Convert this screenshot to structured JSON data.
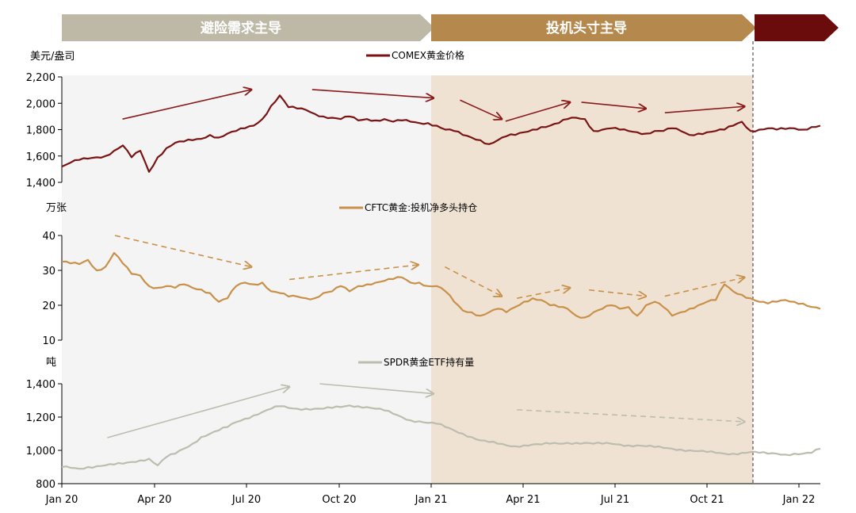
{
  "chart_data": {
    "type": "line",
    "phases": [
      {
        "label": "避险需求主导",
        "color": "#bdb9a6"
      },
      {
        "label": "投机头寸主导",
        "color": "#b5894e"
      },
      {
        "label": "",
        "color": "#6b0c0c"
      }
    ],
    "shading": [
      {
        "from": "Jan 20",
        "to": "Jan 21",
        "color": "#f4f4f4"
      },
      {
        "from": "Jan 21",
        "to": "Dec 21",
        "color": "#efe2d3"
      }
    ],
    "x_ticks": [
      "Jan 20",
      "Apr 20",
      "Jul 20",
      "Oct 20",
      "Jan 21",
      "Apr 21",
      "Jul 21",
      "Oct 21",
      "Jan 22"
    ],
    "panels": [
      {
        "name": "comex",
        "unit": "美元/盎司",
        "legend": "COMEX黄金价格",
        "color": "#7a1414",
        "ylim": [
          1400,
          2200
        ],
        "y_ticks": [
          "2,200",
          "2,000",
          "1,800",
          "1,600",
          "1,400"
        ],
        "tick_values": [
          2200,
          2000,
          1800,
          1600,
          1400
        ],
        "values": [
          1520,
          1550,
          1570,
          1580,
          1590,
          1600,
          1640,
          1680,
          1590,
          1640,
          1480,
          1590,
          1660,
          1700,
          1710,
          1720,
          1730,
          1760,
          1740,
          1770,
          1790,
          1810,
          1830,
          1880,
          1980,
          2060,
          1970,
          1960,
          1950,
          1920,
          1900,
          1890,
          1880,
          1900,
          1870,
          1880,
          1870,
          1880,
          1860,
          1870,
          1860,
          1850,
          1850,
          1830,
          1800,
          1790,
          1760,
          1740,
          1720,
          1690,
          1720,
          1750,
          1760,
          1780,
          1800,
          1820,
          1830,
          1850,
          1880,
          1890,
          1880,
          1790,
          1800,
          1810,
          1800,
          1790,
          1780,
          1770,
          1790,
          1790,
          1810,
          1790,
          1760,
          1770,
          1780,
          1790,
          1800,
          1830,
          1860,
          1790,
          1800,
          1810,
          1800,
          1805,
          1810,
          1800,
          1820,
          1830
        ],
        "arrows": [
          [
            0.08,
            0.4,
            0.25,
            0.12
          ],
          [
            0.33,
            0.12,
            0.49,
            0.2
          ],
          [
            0.525,
            0.22,
            0.58,
            0.4
          ],
          [
            0.585,
            0.42,
            0.67,
            0.24
          ],
          [
            0.685,
            0.24,
            0.77,
            0.3
          ],
          [
            0.795,
            0.34,
            0.9,
            0.28
          ]
        ],
        "arrow_dashed": false
      },
      {
        "name": "cftc",
        "unit": "万张",
        "legend": "CFTC黄金:投机净多头持仓",
        "color": "#c8914a",
        "ylim": [
          10,
          40
        ],
        "y_ticks": [
          "40",
          "30",
          "20",
          "10"
        ],
        "tick_values": [
          40,
          30,
          20,
          10
        ],
        "values": [
          32.5,
          32,
          31.8,
          33,
          30,
          31,
          35,
          32,
          29,
          28.5,
          25.5,
          25,
          25.5,
          25,
          26,
          25,
          24.5,
          23.5,
          21,
          22,
          25.5,
          26.5,
          26,
          26.5,
          24,
          23.5,
          22.5,
          22.5,
          22,
          22,
          23.5,
          24,
          25.5,
          24,
          25.5,
          26,
          26.5,
          27,
          27.5,
          28,
          26.5,
          26.5,
          25.5,
          25.5,
          24,
          21,
          18.5,
          18,
          17,
          18,
          19,
          18,
          19.5,
          21,
          22,
          21.5,
          20,
          19.5,
          19,
          17,
          16.5,
          18,
          19,
          20,
          19,
          19.5,
          17,
          20,
          21,
          19.5,
          17,
          18,
          19,
          20,
          21,
          21.5,
          26,
          24,
          23,
          22,
          21,
          20.5,
          21,
          21.5,
          21,
          20.5,
          19.5,
          19
        ],
        "arrows": [
          [
            0.07,
            0.0,
            0.25,
            0.3
          ],
          [
            0.3,
            0.42,
            0.47,
            0.28
          ],
          [
            0.505,
            0.3,
            0.58,
            0.58
          ],
          [
            0.6,
            0.6,
            0.67,
            0.5
          ],
          [
            0.695,
            0.52,
            0.77,
            0.58
          ],
          [
            0.795,
            0.58,
            0.9,
            0.4
          ]
        ],
        "arrow_dashed": true
      },
      {
        "name": "spdr",
        "unit": "吨",
        "legend": "SPDR黄金ETF持有量",
        "color": "#bcbdae",
        "ylim": [
          800,
          1400
        ],
        "y_ticks": [
          "1,400",
          "1,200",
          "1,000",
          "800"
        ],
        "tick_values": [
          1400,
          1200,
          1000,
          800
        ],
        "values": [
          900,
          895,
          890,
          900,
          905,
          910,
          915,
          920,
          930,
          940,
          950,
          910,
          960,
          980,
          1010,
          1040,
          1080,
          1100,
          1120,
          1140,
          1170,
          1190,
          1210,
          1230,
          1250,
          1265,
          1255,
          1250,
          1250,
          1250,
          1250,
          1255,
          1260,
          1270,
          1265,
          1260,
          1250,
          1240,
          1220,
          1200,
          1180,
          1175,
          1165,
          1160,
          1140,
          1120,
          1100,
          1080,
          1060,
          1050,
          1040,
          1030,
          1025,
          1030,
          1035,
          1035,
          1040,
          1040,
          1045,
          1045,
          1045,
          1040,
          1040,
          1040,
          1035,
          1030,
          1030,
          1025,
          1020,
          1015,
          1010,
          1005,
          1000,
          995,
          990,
          985,
          980,
          980,
          985,
          990,
          985,
          980,
          980,
          975,
          980,
          980,
          985,
          1010
        ],
        "arrows": [
          [
            0.06,
            0.54,
            0.3,
            0.03
          ],
          [
            0.34,
            0.0,
            0.49,
            0.1
          ],
          [
            0.6,
            0.26,
            0.9,
            0.38
          ]
        ],
        "arrow_dashed": false
      }
    ]
  }
}
